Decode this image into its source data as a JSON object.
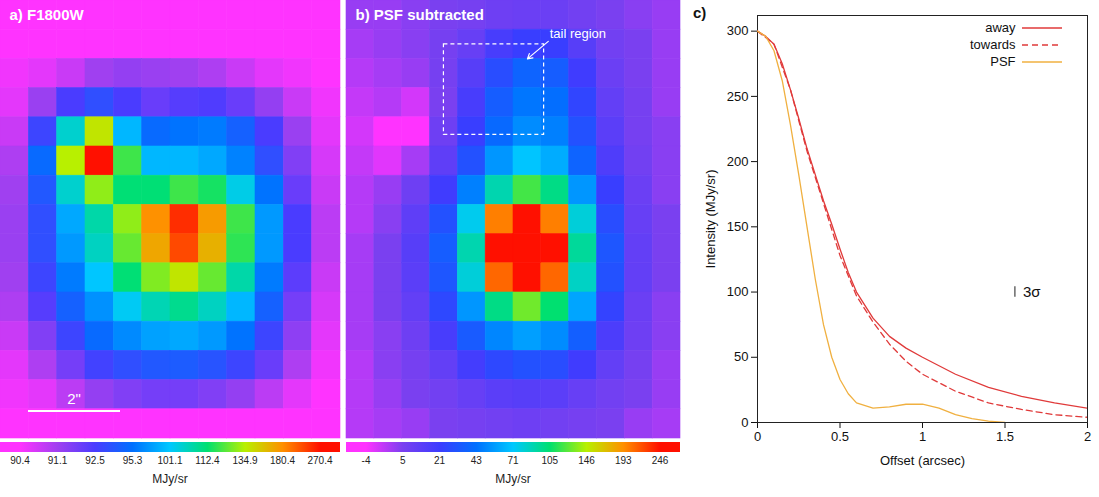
{
  "chart_data": [
    {
      "type": "heatmap",
      "title": "a) F1800W",
      "scale_bar": "2\"",
      "cells": [
        [
          90.4,
          90.4,
          90.4,
          90.4,
          90.4,
          90.4,
          90.4,
          90.4,
          90.4,
          90.4,
          90.4,
          90.4
        ],
        [
          90.4,
          90.4,
          90.4,
          90.4,
          90.4,
          90.4,
          90.4,
          90.4,
          90.4,
          90.4,
          90.4,
          90.4
        ],
        [
          90.5,
          90.6,
          90.8,
          91.1,
          91.3,
          91.2,
          91.1,
          91.0,
          90.8,
          90.6,
          90.5,
          90.4
        ],
        [
          90.6,
          91.2,
          92.5,
          93.5,
          92.5,
          92.0,
          92.3,
          92.4,
          92.0,
          91.3,
          90.8,
          90.5
        ],
        [
          90.8,
          93.0,
          105,
          140,
          100,
          95.0,
          95.5,
          96.0,
          94.5,
          92.5,
          91.2,
          90.6
        ],
        [
          91.0,
          95.0,
          135,
          270.4,
          120,
          100,
          100,
          99.0,
          96.5,
          93.5,
          91.6,
          90.7
        ],
        [
          91.1,
          94.0,
          105,
          130,
          112,
          112,
          120,
          115,
          103,
          95.5,
          92.0,
          90.8
        ],
        [
          91.2,
          93.5,
          99.0,
          108,
          130,
          180,
          250,
          175,
          120,
          98.0,
          92.5,
          90.9
        ],
        [
          91.2,
          93.5,
          98.0,
          106,
          125,
          170,
          230,
          165,
          118,
          98.0,
          92.5,
          90.9
        ],
        [
          91.1,
          93.0,
          96.0,
          101,
          112,
          128,
          140,
          125,
          108,
          96.0,
          92.2,
          90.8
        ],
        [
          91.0,
          92.3,
          94.5,
          97.5,
          102,
          107,
          110,
          106,
          100,
          94.5,
          91.8,
          90.7
        ],
        [
          90.8,
          91.6,
          93.0,
          95.0,
          97.0,
          98.5,
          99.0,
          98.0,
          95.5,
          93.0,
          91.4,
          90.6
        ],
        [
          90.6,
          91.0,
          91.8,
          92.8,
          93.5,
          94.0,
          94.2,
          93.8,
          93.0,
          92.0,
          91.0,
          90.5
        ],
        [
          90.5,
          90.6,
          90.9,
          91.3,
          91.6,
          91.8,
          91.8,
          91.6,
          91.3,
          90.9,
          90.6,
          90.4
        ],
        [
          90.4,
          90.4,
          90.4,
          90.4,
          90.4,
          90.4,
          90.4,
          90.4,
          90.4,
          90.4,
          90.4,
          90.4
        ]
      ],
      "colorbar": {
        "label": "MJy/sr",
        "range": [
          90.4,
          270.4
        ],
        "ticks": [
          90.4,
          91.1,
          92.5,
          95.3,
          101.1,
          112.4,
          134.9,
          180.4,
          270.4
        ],
        "colors": [
          "#ff33ff",
          "#a040f0",
          "#4a3cff",
          "#0070ff",
          "#00c8ff",
          "#00e070",
          "#b8f000",
          "#ff9000",
          "#ff1000"
        ]
      }
    },
    {
      "type": "heatmap",
      "title": "b) PSF subtracted",
      "cells": [
        [
          3,
          3,
          4,
          5,
          6,
          8,
          9,
          9,
          7,
          5,
          4,
          3
        ],
        [
          2,
          3,
          4,
          6,
          10,
          18,
          22,
          22,
          14,
          7,
          5,
          3
        ],
        [
          1,
          2,
          3,
          6,
          14,
          28,
          38,
          35,
          20,
          9,
          5,
          3
        ],
        [
          0,
          1,
          -1,
          5,
          18,
          35,
          45,
          42,
          25,
          11,
          6,
          3
        ],
        [
          -1,
          -4,
          -4,
          8,
          22,
          40,
          52,
          48,
          30,
          13,
          6,
          4
        ],
        [
          0,
          -2,
          2,
          12,
          30,
          55,
          70,
          62,
          38,
          16,
          7,
          4
        ],
        [
          1,
          3,
          8,
          20,
          48,
          90,
          120,
          100,
          55,
          22,
          9,
          4
        ],
        [
          1,
          4,
          12,
          30,
          75,
          200,
          246,
          200,
          80,
          28,
          10,
          5
        ],
        [
          2,
          5,
          14,
          35,
          90,
          246,
          246,
          246,
          95,
          32,
          11,
          5
        ],
        [
          2,
          5,
          13,
          32,
          80,
          210,
          246,
          210,
          85,
          30,
          11,
          5
        ],
        [
          2,
          5,
          11,
          26,
          55,
          100,
          130,
          105,
          60,
          24,
          9,
          4
        ],
        [
          2,
          4,
          8,
          18,
          34,
          50,
          58,
          52,
          36,
          17,
          8,
          4
        ],
        [
          1,
          4,
          6,
          11,
          19,
          26,
          30,
          28,
          20,
          11,
          6,
          3
        ],
        [
          1,
          3,
          5,
          7,
          10,
          13,
          14,
          13,
          10,
          7,
          5,
          3
        ],
        [
          1,
          2,
          3,
          5,
          6,
          7,
          8,
          7,
          6,
          5,
          3,
          2
        ]
      ],
      "annotations": [
        {
          "text": "tail region",
          "box": {
            "x1": 3.5,
            "x2": 7.1,
            "y1": 1.5,
            "y2": 4.6
          }
        }
      ],
      "colorbar": {
        "label": "MJy/sr",
        "range": [
          -4,
          246
        ],
        "ticks": [
          -4,
          5,
          21,
          43,
          71,
          105,
          146,
          193,
          246
        ],
        "colors": [
          "#ff33ff",
          "#7a40f0",
          "#3c3cff",
          "#0070ff",
          "#00c8ff",
          "#00e070",
          "#b8f000",
          "#ff9000",
          "#ff1000"
        ]
      }
    },
    {
      "type": "line",
      "title": "c)",
      "x_label": "Offset (arcsec)",
      "y_label": "Intensity (MJy/sr)",
      "xlim": [
        0,
        2
      ],
      "xticks": [
        0,
        0.5,
        1,
        1.5,
        2
      ],
      "ylim": [
        0,
        312
      ],
      "yticks": [
        0,
        50,
        100,
        150,
        200,
        250,
        300
      ],
      "legend": "top-right",
      "series": [
        {
          "name": "away",
          "color": "#e03a3a",
          "line_style": "solid",
          "x": [
            0,
            0.05,
            0.1,
            0.15,
            0.2,
            0.25,
            0.3,
            0.35,
            0.4,
            0.45,
            0.5,
            0.55,
            0.6,
            0.7,
            0.8,
            0.9,
            1.0,
            1.2,
            1.4,
            1.6,
            1.8,
            2.0
          ],
          "values": [
            300,
            296,
            290,
            275,
            255,
            233,
            210,
            190,
            170,
            152,
            133,
            115,
            100,
            80,
            66,
            57,
            50,
            37,
            27,
            20,
            15,
            11
          ]
        },
        {
          "name": "towards",
          "color": "#e03a3a",
          "line_style": "dashed",
          "x": [
            0,
            0.1,
            0.2,
            0.3,
            0.4,
            0.5,
            0.6,
            0.7,
            0.8,
            0.9,
            1.0,
            1.2,
            1.4,
            1.6,
            1.8,
            2.0
          ],
          "values": [
            300,
            290,
            255,
            208,
            168,
            128,
            97,
            77,
            60,
            47,
            37,
            24,
            15,
            10,
            6,
            4
          ]
        },
        {
          "name": "PSF",
          "color": "#f0b040",
          "line_style": "solid",
          "x": [
            0,
            0.05,
            0.1,
            0.15,
            0.2,
            0.25,
            0.3,
            0.35,
            0.4,
            0.45,
            0.5,
            0.55,
            0.6,
            0.7,
            0.8,
            0.9,
            1.0,
            1.1,
            1.2,
            1.3,
            1.4,
            1.5
          ],
          "values": [
            300,
            296,
            285,
            262,
            228,
            190,
            150,
            110,
            75,
            50,
            33,
            22,
            15,
            11,
            12,
            14,
            14,
            11,
            6,
            3,
            1,
            0
          ]
        }
      ],
      "error_bar": {
        "x": 1.56,
        "y": 100,
        "error": 4,
        "label": "3σ"
      }
    }
  ]
}
